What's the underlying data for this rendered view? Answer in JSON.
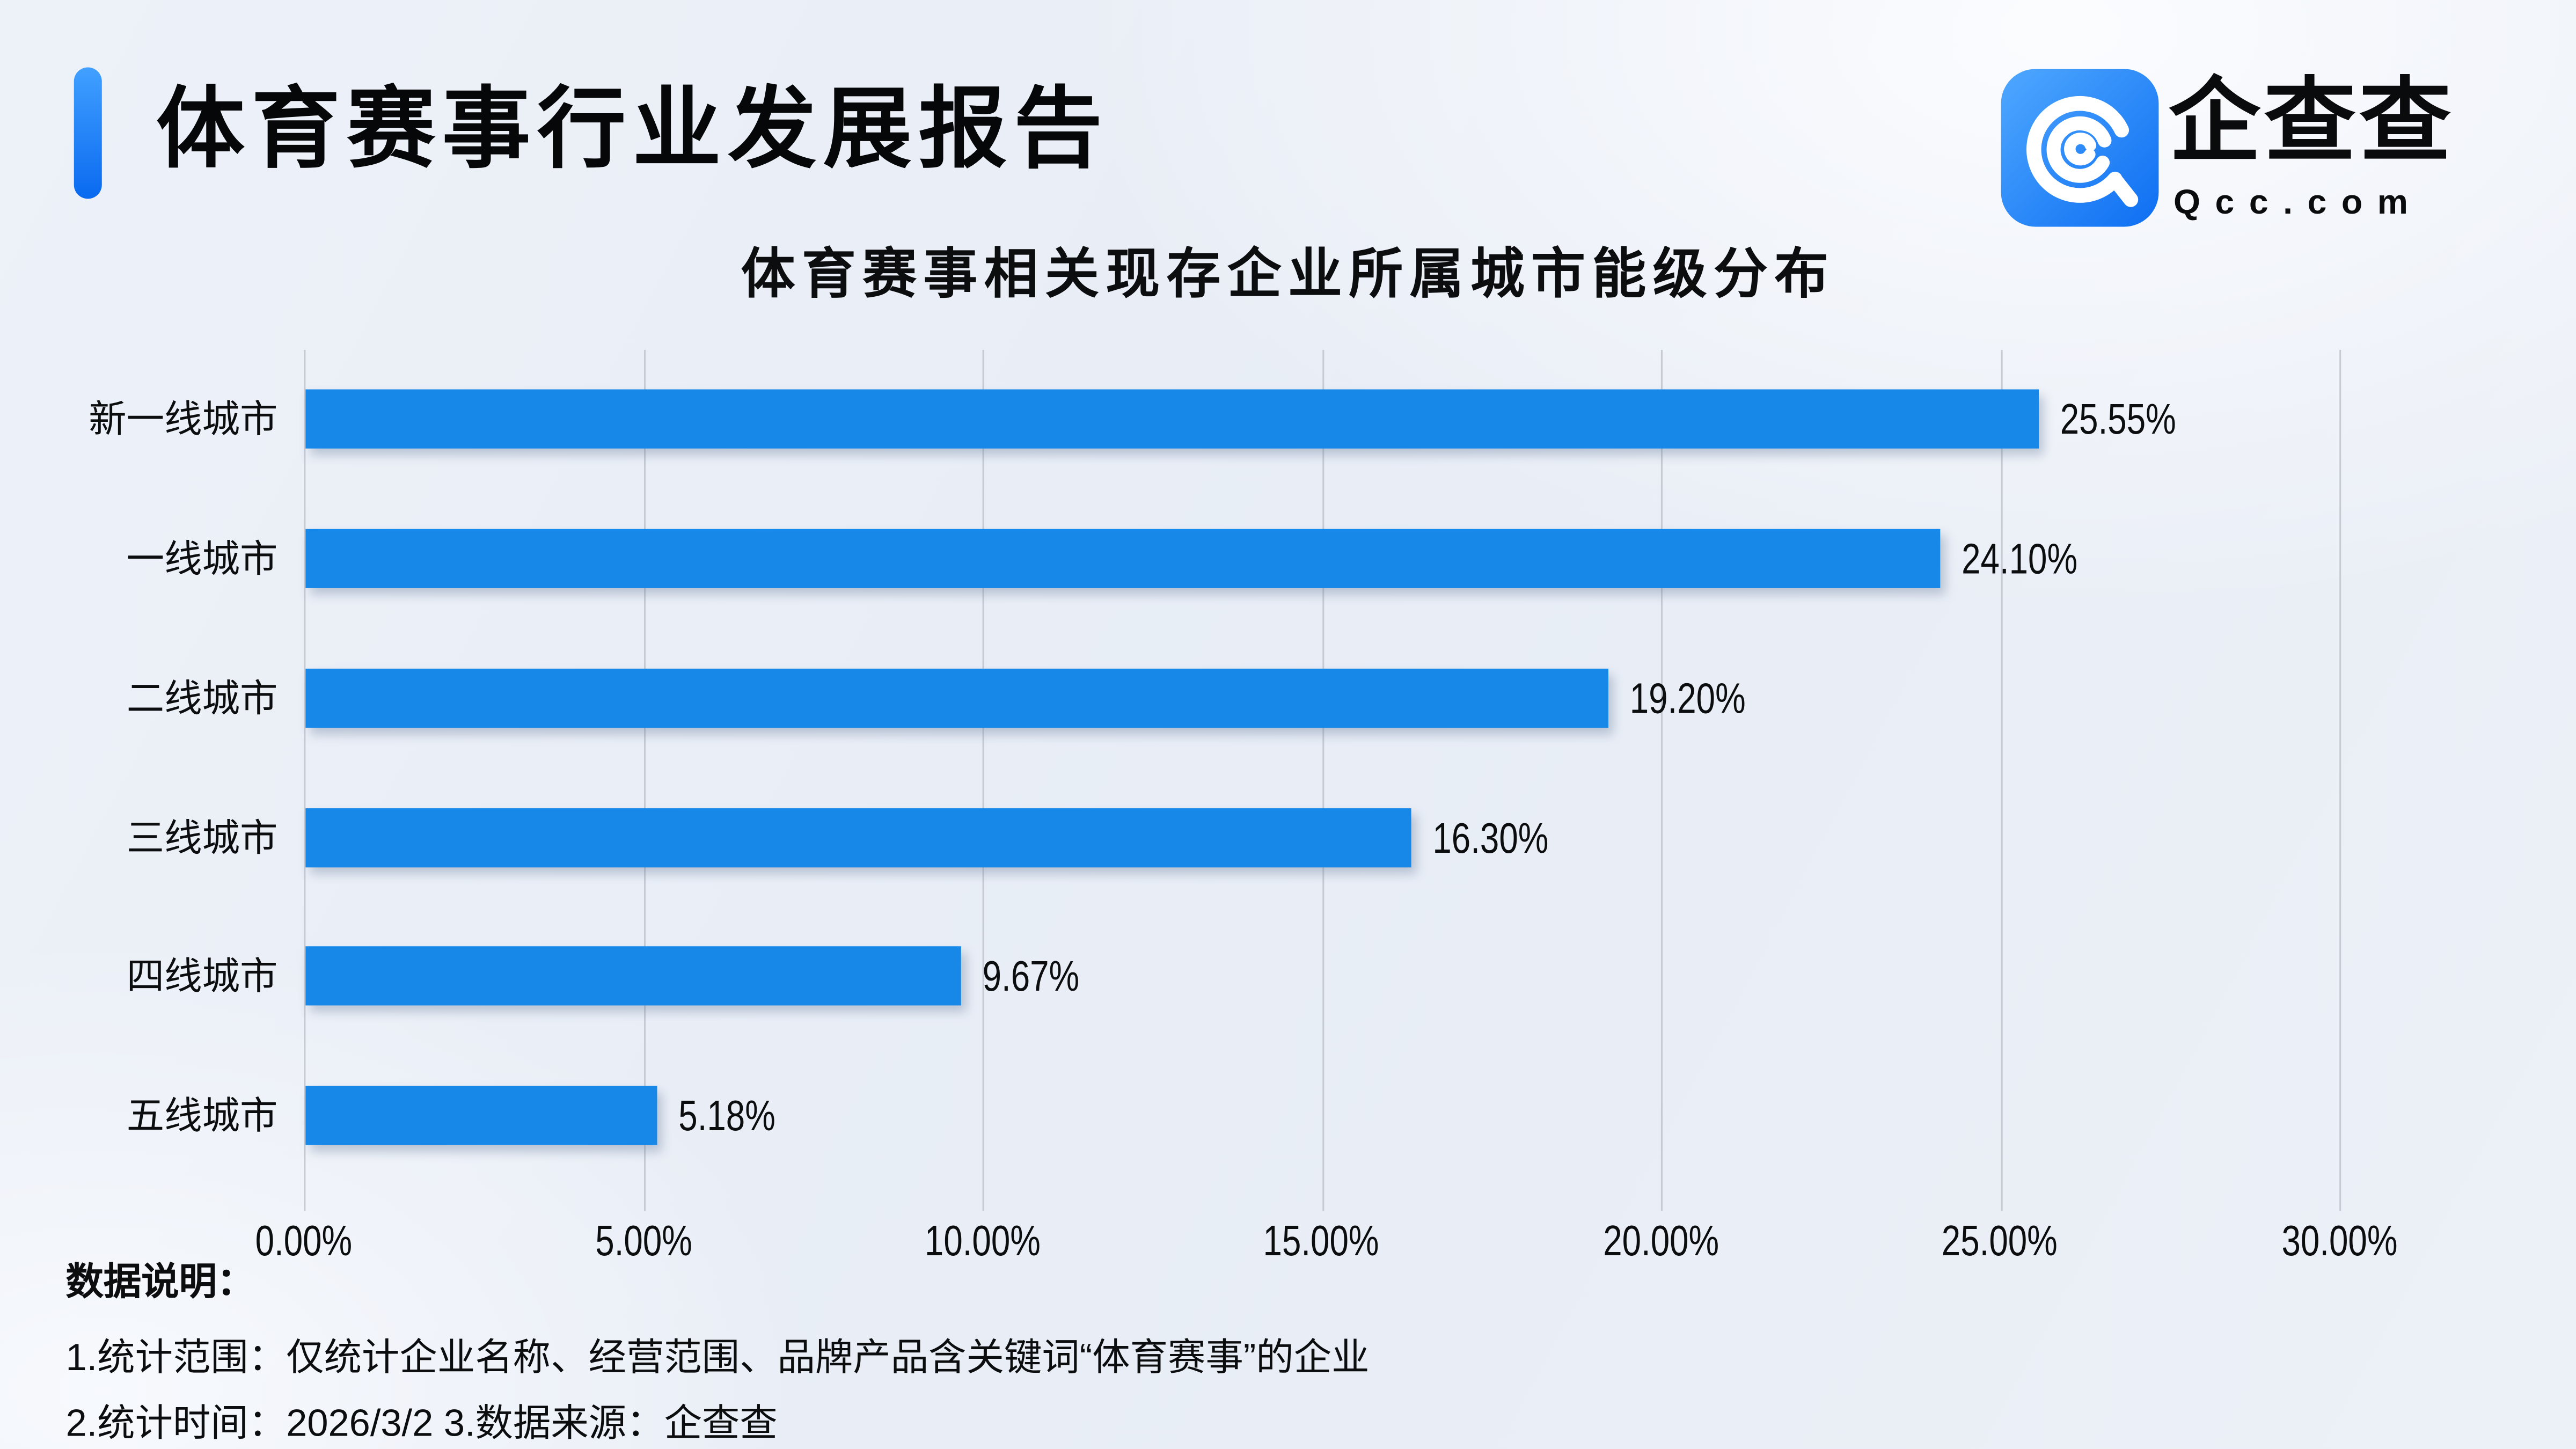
{
  "header": {
    "title": "体育赛事行业发展报告"
  },
  "brand": {
    "name": "企查查",
    "domain": "Qcc.com"
  },
  "chart_data": {
    "type": "bar",
    "orientation": "horizontal",
    "title": "体育赛事相关现存企业所属城市能级分布",
    "categories": [
      "新一线城市",
      "一线城市",
      "二线城市",
      "三线城市",
      "四线城市",
      "五线城市"
    ],
    "values": [
      25.55,
      24.1,
      19.2,
      16.3,
      9.67,
      5.18
    ],
    "value_labels": [
      "25.55%",
      "24.10%",
      "19.20%",
      "16.30%",
      "9.67%",
      "5.18%"
    ],
    "x_ticks": [
      "0.00%",
      "5.00%",
      "10.00%",
      "15.00%",
      "20.00%",
      "25.00%",
      "30.00%"
    ],
    "xlim": [
      0,
      30
    ],
    "grid": true,
    "legend": false,
    "bar_color": "#1787e8"
  },
  "footer": {
    "heading": "数据说明：",
    "notes": [
      "1.统计范围：仅统计企业名称、经营范围、品牌产品含关键词“体育赛事”的企业",
      "2.统计时间：2026/3/2  3.数据来源：企查查"
    ]
  },
  "colors": {
    "bar": "#1787e8",
    "accent_from": "#41a0ff",
    "accent_to": "#0a6af0",
    "gridline": "#c5cad3",
    "text": "#0c0d0f",
    "logo_from": "#4fa8ff",
    "logo_to": "#0d6ef2"
  }
}
